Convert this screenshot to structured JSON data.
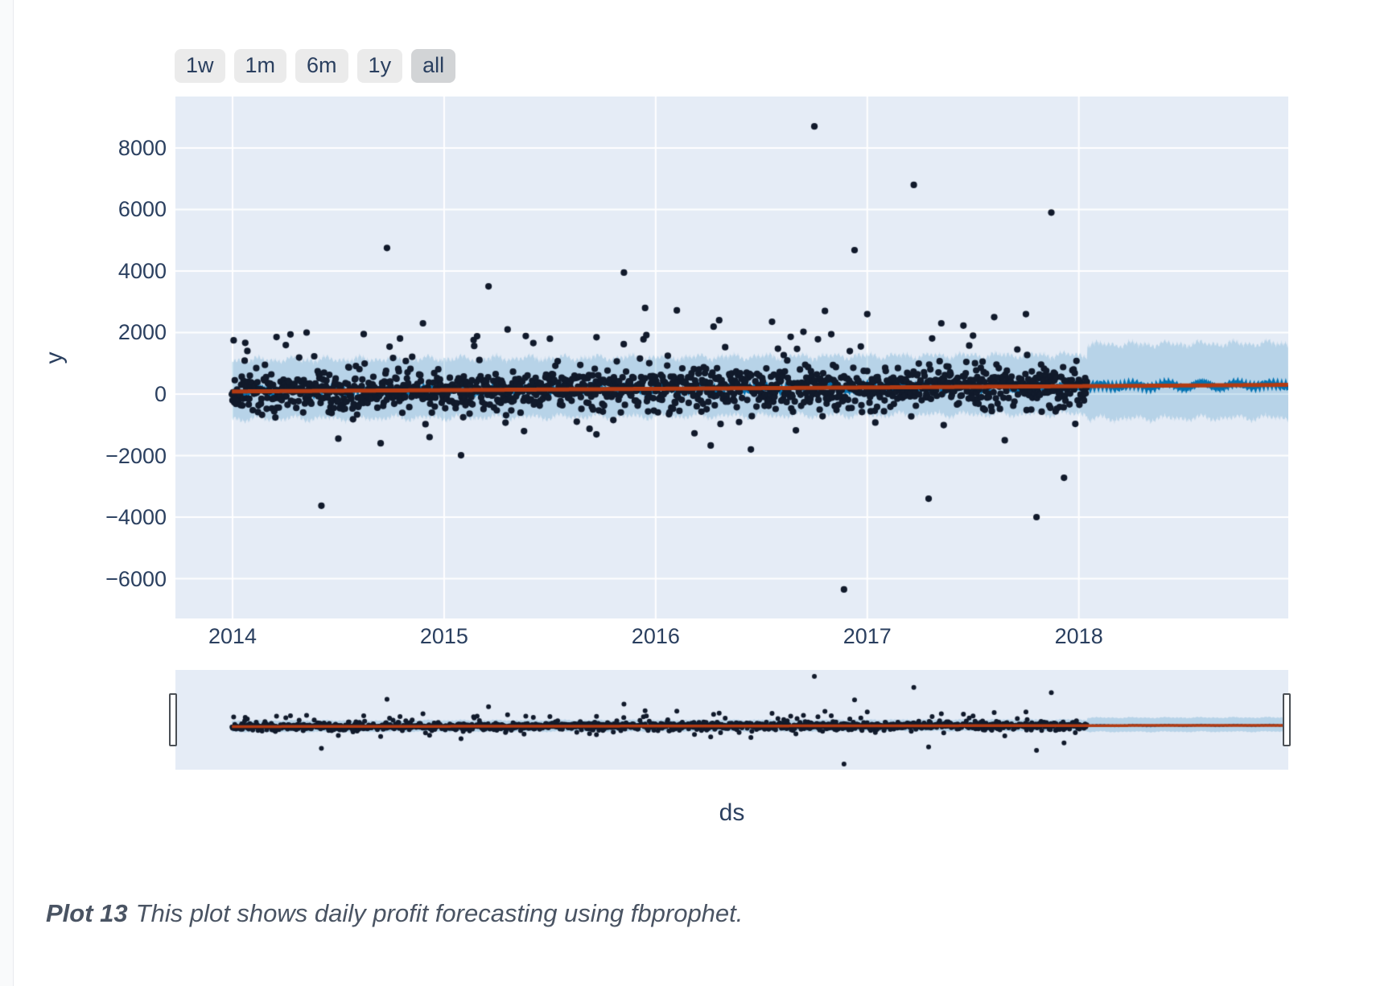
{
  "page": {
    "caption": {
      "label": "Plot 13",
      "text": "This plot shows daily profit forecasting using fbprophet."
    }
  },
  "toolbar": {
    "buttons": [
      {
        "label": "1w",
        "active": false
      },
      {
        "label": "1m",
        "active": false
      },
      {
        "label": "6m",
        "active": false
      },
      {
        "label": "1y",
        "active": false
      },
      {
        "label": "all",
        "active": true
      }
    ]
  },
  "chart_data": {
    "type": "scatter",
    "description": "fbprophet (Prophet) daily profit forecast rendered with Plotly: black daily observation markers, blue yhat line, shaded uncertainty interval, red trend line, range selector buttons and a range slider mini-plot.",
    "title": "",
    "xlabel": "ds",
    "ylabel": "y",
    "grid": true,
    "legend": false,
    "xticks": [
      2014,
      2015,
      2016,
      2017,
      2018
    ],
    "xtick_labels": [
      "2014",
      "2015",
      "2016",
      "2017",
      "2018"
    ],
    "yticks": [
      8000,
      6000,
      4000,
      2000,
      0,
      -2000,
      -4000,
      -6000
    ],
    "ytick_labels": [
      "8000",
      "6000",
      "4000",
      "2000",
      "0",
      "−2000",
      "−4000",
      "−6000"
    ],
    "xlim": [
      2013.73,
      2018.99
    ],
    "ylim": [
      -7294,
      9673
    ],
    "mini_ylim": [
      -7300,
      9800
    ],
    "data_start": 2013.997,
    "history_end": 2018.04,
    "forecast_end": 2018.99,
    "trend": {
      "x": [
        2013.997,
        2018.99
      ],
      "y": [
        85,
        300
      ]
    },
    "uncertainty_band": {
      "history_up": 950,
      "history_down": 830,
      "forecast_up": 1280,
      "forecast_down": 1000
    },
    "yhat_line": {
      "weekly_amp": 55,
      "seasonal_amp": 70
    },
    "scatter_gen": {
      "points_per_year": 365,
      "base_std": 320,
      "pos_tail_prob": 0.055,
      "pos_tail_span": 1500,
      "neg_tail_prob": 0.028,
      "neg_tail_span": 1000,
      "seed": 20140101
    },
    "outliers": [
      [
        2014.07,
        1400
      ],
      [
        2014.35,
        2000
      ],
      [
        2014.42,
        -3630
      ],
      [
        2014.5,
        -1450
      ],
      [
        2014.62,
        1950
      ],
      [
        2014.7,
        -1600
      ],
      [
        2014.73,
        4750
      ],
      [
        2014.9,
        2300
      ],
      [
        2015.08,
        -1990
      ],
      [
        2015.21,
        3500
      ],
      [
        2015.3,
        2100
      ],
      [
        2015.5,
        1800
      ],
      [
        2015.72,
        -1310
      ],
      [
        2015.85,
        3950
      ],
      [
        2015.95,
        2800
      ],
      [
        2016.1,
        2720
      ],
      [
        2016.26,
        -1670
      ],
      [
        2016.3,
        2400
      ],
      [
        2016.45,
        -1800
      ],
      [
        2016.55,
        2350
      ],
      [
        2016.75,
        8700
      ],
      [
        2016.8,
        2700
      ],
      [
        2016.89,
        -6350
      ],
      [
        2016.94,
        4680
      ],
      [
        2017.0,
        2600
      ],
      [
        2017.22,
        6800
      ],
      [
        2017.29,
        -3400
      ],
      [
        2017.35,
        2300
      ],
      [
        2017.5,
        1900
      ],
      [
        2017.6,
        2500
      ],
      [
        2017.65,
        -1500
      ],
      [
        2017.75,
        2600
      ],
      [
        2017.8,
        -4000
      ],
      [
        2017.87,
        5900
      ],
      [
        2017.93,
        -2720
      ]
    ],
    "colors": {
      "plot_bg": "#e5ecf6",
      "grid": "#ffffff",
      "marker": "#111a2b",
      "yhat": "#0072B2",
      "band": "rgba(0,114,178,0.2)",
      "trend": "#b23a12",
      "tick_text": "#2a3f5f"
    }
  }
}
